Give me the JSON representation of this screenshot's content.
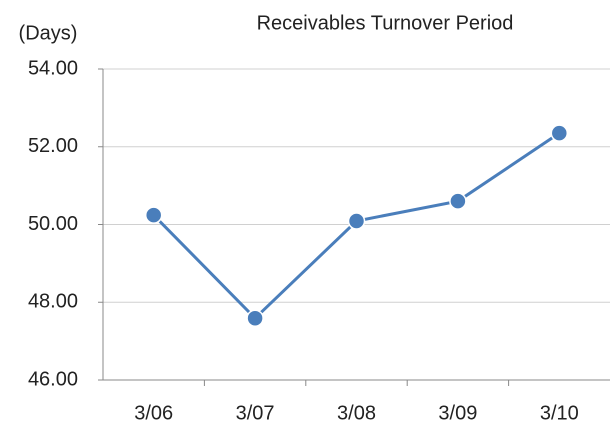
{
  "chart_data": {
    "type": "line",
    "title": "Receivables Turnover Period",
    "y_label": "(Days)",
    "categories": [
      "3/06",
      "3/07",
      "3/08",
      "3/09",
      "3/10"
    ],
    "series": [
      {
        "name": "Receivables Turnover Period",
        "color": "#4a7ebb",
        "values": [
          50.24,
          47.59,
          50.09,
          50.6,
          52.35
        ]
      }
    ],
    "ylim": [
      46,
      54
    ],
    "yticks": [
      {
        "value": 46,
        "label": "46.00"
      },
      {
        "value": 48,
        "label": "48.00"
      },
      {
        "value": 50,
        "label": "50.00"
      },
      {
        "value": 52,
        "label": "52.00"
      },
      {
        "value": 54,
        "label": "54.00"
      }
    ],
    "grid": true
  }
}
